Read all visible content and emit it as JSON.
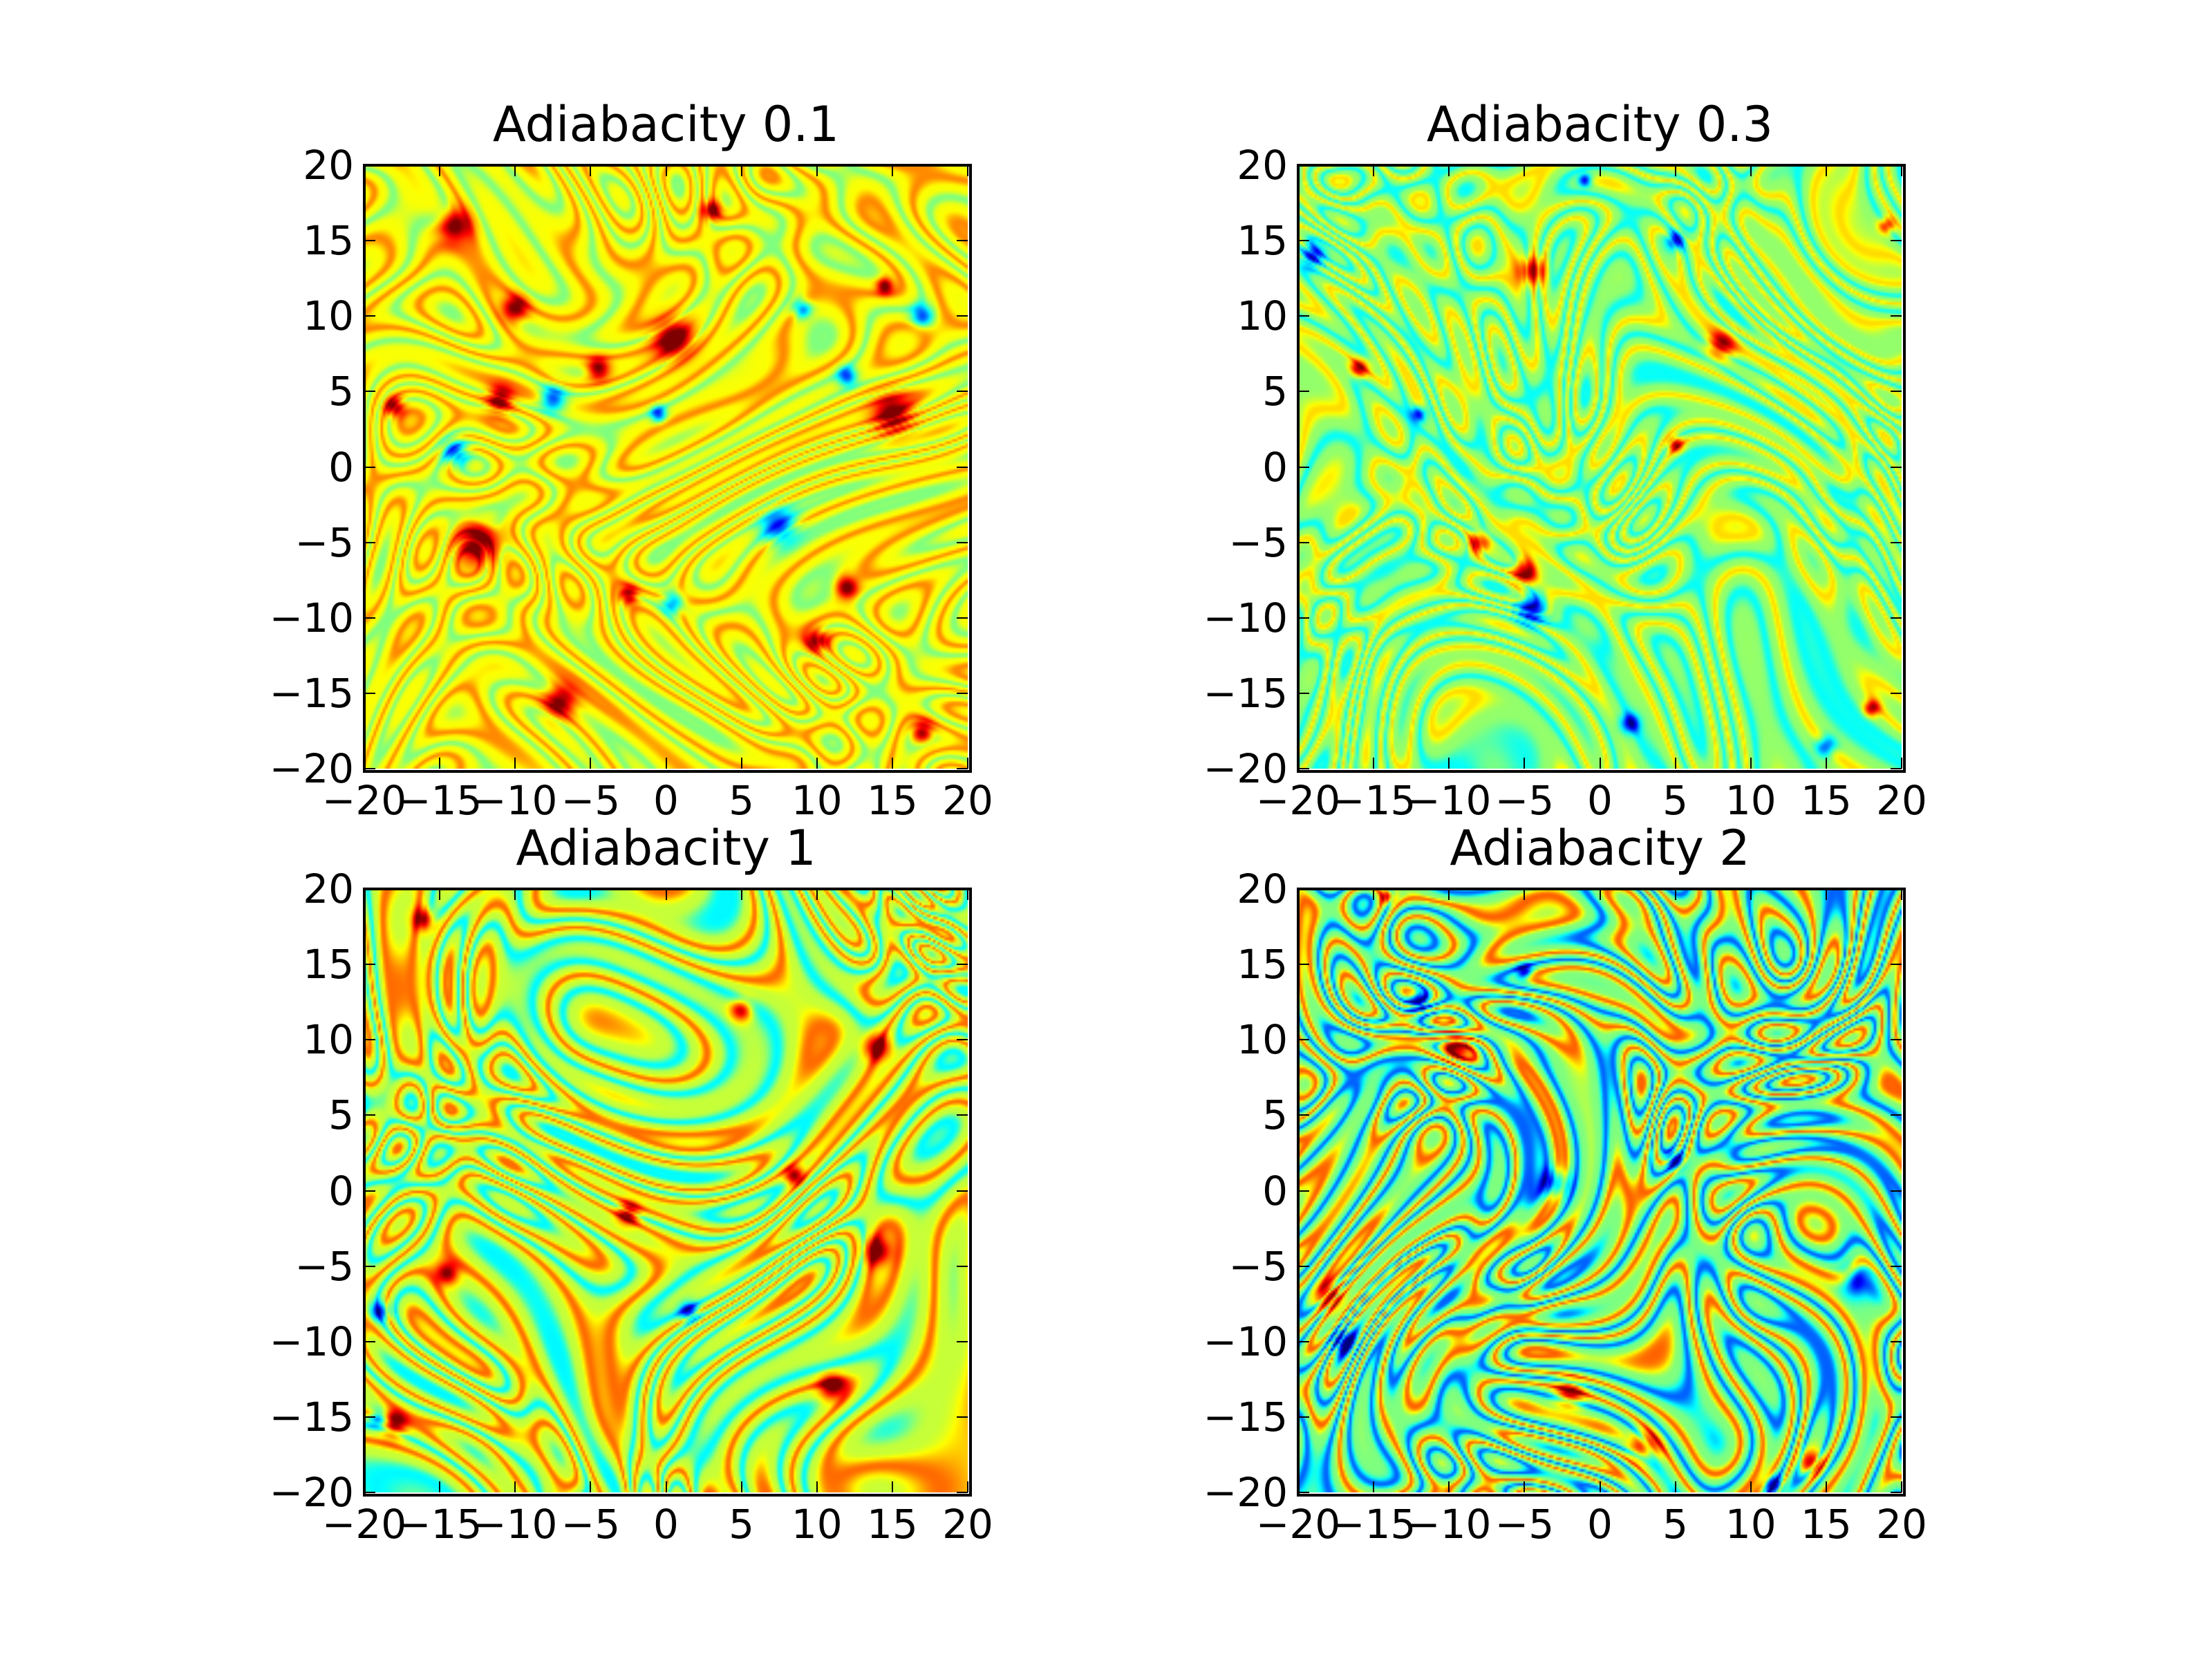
{
  "chart_data": [
    {
      "type": "heatmap",
      "title": "Adiabacity 0.1",
      "xlim": [
        -20,
        20
      ],
      "ylim": [
        -20,
        20
      ],
      "xticks": [
        "−20",
        "−15",
        "−10",
        "−5",
        "0",
        "5",
        "10",
        "15",
        "20"
      ],
      "yticks": [
        "20",
        "15",
        "10",
        "5",
        "0",
        "−5",
        "−10",
        "−15",
        "−20"
      ],
      "colormap": "jet",
      "background_level": 0.62,
      "filament_amplitude": 0.12,
      "vortices": [
        {
          "x": -14,
          "y": 16,
          "sign": 1,
          "r": 1.0
        },
        {
          "x": 3,
          "y": 17,
          "sign": 1,
          "r": 0.6
        },
        {
          "x": -10,
          "y": 10.5,
          "sign": 1,
          "r": 0.8
        },
        {
          "x": 0.5,
          "y": 8.5,
          "sign": 1,
          "r": 1.2
        },
        {
          "x": -18,
          "y": 4,
          "sign": 1,
          "r": 0.6
        },
        {
          "x": -11,
          "y": 4.5,
          "sign": 1,
          "r": 0.8
        },
        {
          "x": 15,
          "y": 3.5,
          "sign": 1,
          "r": 1.2
        },
        {
          "x": -12.5,
          "y": -5,
          "sign": 1,
          "r": 1.3
        },
        {
          "x": -2.5,
          "y": -8.5,
          "sign": 1,
          "r": 0.6
        },
        {
          "x": 12,
          "y": -8,
          "sign": 1,
          "r": 0.7
        },
        {
          "x": 10,
          "y": -11.5,
          "sign": 1,
          "r": 0.7
        },
        {
          "x": -7,
          "y": -15.5,
          "sign": 1,
          "r": 1.0
        },
        {
          "x": 17,
          "y": -17.5,
          "sign": 1,
          "r": 0.7
        },
        {
          "x": 14.5,
          "y": 12,
          "sign": 1,
          "r": 0.5
        },
        {
          "x": -4.5,
          "y": 6.5,
          "sign": 1,
          "r": 0.7
        },
        {
          "x": -14,
          "y": 1,
          "sign": -1,
          "r": 0.8
        },
        {
          "x": -7.5,
          "y": 4.5,
          "sign": -1,
          "r": 0.8
        },
        {
          "x": 12,
          "y": 6,
          "sign": -1,
          "r": 0.6
        },
        {
          "x": 17,
          "y": 10,
          "sign": -1,
          "r": 0.7
        },
        {
          "x": 7.5,
          "y": -4,
          "sign": -1,
          "r": 1.1
        },
        {
          "x": 0.5,
          "y": -9,
          "sign": -1,
          "r": 0.7
        },
        {
          "x": 9,
          "y": 10.5,
          "sign": -1,
          "r": 0.6
        },
        {
          "x": -0.5,
          "y": 3.5,
          "sign": -1,
          "r": 0.5
        }
      ]
    },
    {
      "type": "heatmap",
      "title": "Adiabacity 0.3",
      "xlim": [
        -20,
        20
      ],
      "ylim": [
        -20,
        20
      ],
      "xticks": [
        "−20",
        "−15",
        "−10",
        "−5",
        "0",
        "5",
        "10",
        "15",
        "20"
      ],
      "yticks": [
        "20",
        "15",
        "10",
        "5",
        "0",
        "−5",
        "−10",
        "−15",
        "−20"
      ],
      "colormap": "jet",
      "background_level": 0.52,
      "filament_amplitude": 0.14,
      "vortices": [
        {
          "x": -4.5,
          "y": 13,
          "sign": 1,
          "r": 0.9
        },
        {
          "x": -5,
          "y": -7,
          "sign": 1,
          "r": 0.8
        },
        {
          "x": -8,
          "y": -5,
          "sign": 1,
          "r": 0.7
        },
        {
          "x": 5,
          "y": 1.5,
          "sign": 1,
          "r": 0.5
        },
        {
          "x": 8,
          "y": 8,
          "sign": 1,
          "r": 0.9
        },
        {
          "x": 19,
          "y": 16,
          "sign": 1,
          "r": 0.5
        },
        {
          "x": 18,
          "y": -16,
          "sign": 1,
          "r": 0.5
        },
        {
          "x": -16,
          "y": 6.5,
          "sign": 1,
          "r": 0.6
        },
        {
          "x": -4.5,
          "y": -9.5,
          "sign": -1,
          "r": 0.9
        },
        {
          "x": 2,
          "y": -17,
          "sign": -1,
          "r": 0.6
        },
        {
          "x": 15,
          "y": -18.5,
          "sign": -1,
          "r": 0.6
        },
        {
          "x": -12,
          "y": 3.5,
          "sign": -1,
          "r": 0.5
        },
        {
          "x": -19,
          "y": 14,
          "sign": -1,
          "r": 0.7
        },
        {
          "x": 5,
          "y": 15,
          "sign": -1,
          "r": 0.6
        },
        {
          "x": -1,
          "y": 19,
          "sign": -1,
          "r": 0.4
        }
      ]
    },
    {
      "type": "heatmap",
      "title": "Adiabacity 1",
      "xlim": [
        -20,
        20
      ],
      "ylim": [
        -20,
        20
      ],
      "xticks": [
        "−20",
        "−15",
        "−10",
        "−5",
        "0",
        "5",
        "10",
        "15",
        "20"
      ],
      "yticks": [
        "20",
        "15",
        "10",
        "5",
        "0",
        "−5",
        "−10",
        "−15",
        "−20"
      ],
      "colormap": "jet",
      "background_level": 0.57,
      "filament_amplitude": 0.2,
      "vortices": [
        {
          "x": 11,
          "y": -13,
          "sign": 1,
          "r": 0.8
        },
        {
          "x": -14.5,
          "y": -5.5,
          "sign": 1,
          "r": 0.7
        },
        {
          "x": -18,
          "y": -15.5,
          "sign": 1,
          "r": 0.8
        },
        {
          "x": 5,
          "y": 12,
          "sign": 1,
          "r": 0.7
        },
        {
          "x": 14,
          "y": 9.5,
          "sign": 1,
          "r": 0.8
        },
        {
          "x": -2.5,
          "y": -1.5,
          "sign": 1,
          "r": 0.7
        },
        {
          "x": 14,
          "y": -4,
          "sign": 1,
          "r": 0.9
        },
        {
          "x": 8.5,
          "y": 1,
          "sign": 1,
          "r": 0.6
        },
        {
          "x": -16,
          "y": 18,
          "sign": 1,
          "r": 0.7
        },
        {
          "x": -19,
          "y": -15,
          "sign": -1,
          "r": 0.6
        },
        {
          "x": -19,
          "y": -8,
          "sign": -1,
          "r": 0.6
        },
        {
          "x": 1.5,
          "y": -8,
          "sign": -1,
          "r": 0.6
        }
      ]
    },
    {
      "type": "heatmap",
      "title": "Adiabacity 2",
      "xlim": [
        -20,
        20
      ],
      "ylim": [
        -20,
        20
      ],
      "xticks": [
        "−20",
        "−15",
        "−10",
        "−5",
        "0",
        "5",
        "10",
        "15",
        "20"
      ],
      "yticks": [
        "20",
        "15",
        "10",
        "5",
        "0",
        "−5",
        "−10",
        "−15",
        "−20"
      ],
      "colormap": "jet",
      "background_level": 0.5,
      "filament_amplitude": 0.28,
      "vortices": [
        {
          "x": -9.5,
          "y": 9.5,
          "sign": 1,
          "r": 1.0
        },
        {
          "x": -2,
          "y": -13.5,
          "sign": 1,
          "r": 0.9
        },
        {
          "x": 3,
          "y": -17,
          "sign": 1,
          "r": 1.0
        },
        {
          "x": -18,
          "y": -7,
          "sign": 1,
          "r": 0.9
        },
        {
          "x": 14,
          "y": -18,
          "sign": 1,
          "r": 0.8
        },
        {
          "x": -14,
          "y": 19.5,
          "sign": 1,
          "r": 0.5
        },
        {
          "x": -3,
          "y": 0.5,
          "sign": -1,
          "r": 0.9
        },
        {
          "x": 17,
          "y": -6,
          "sign": -1,
          "r": 1.0
        },
        {
          "x": -17,
          "y": -10,
          "sign": -1,
          "r": 0.8
        },
        {
          "x": 5,
          "y": 2,
          "sign": -1,
          "r": 0.6
        },
        {
          "x": -12,
          "y": 12.5,
          "sign": -1,
          "r": 0.7
        },
        {
          "x": -5,
          "y": 14.5,
          "sign": -1,
          "r": 0.5
        },
        {
          "x": 11.5,
          "y": -19.5,
          "sign": -1,
          "r": 0.6
        }
      ]
    }
  ]
}
